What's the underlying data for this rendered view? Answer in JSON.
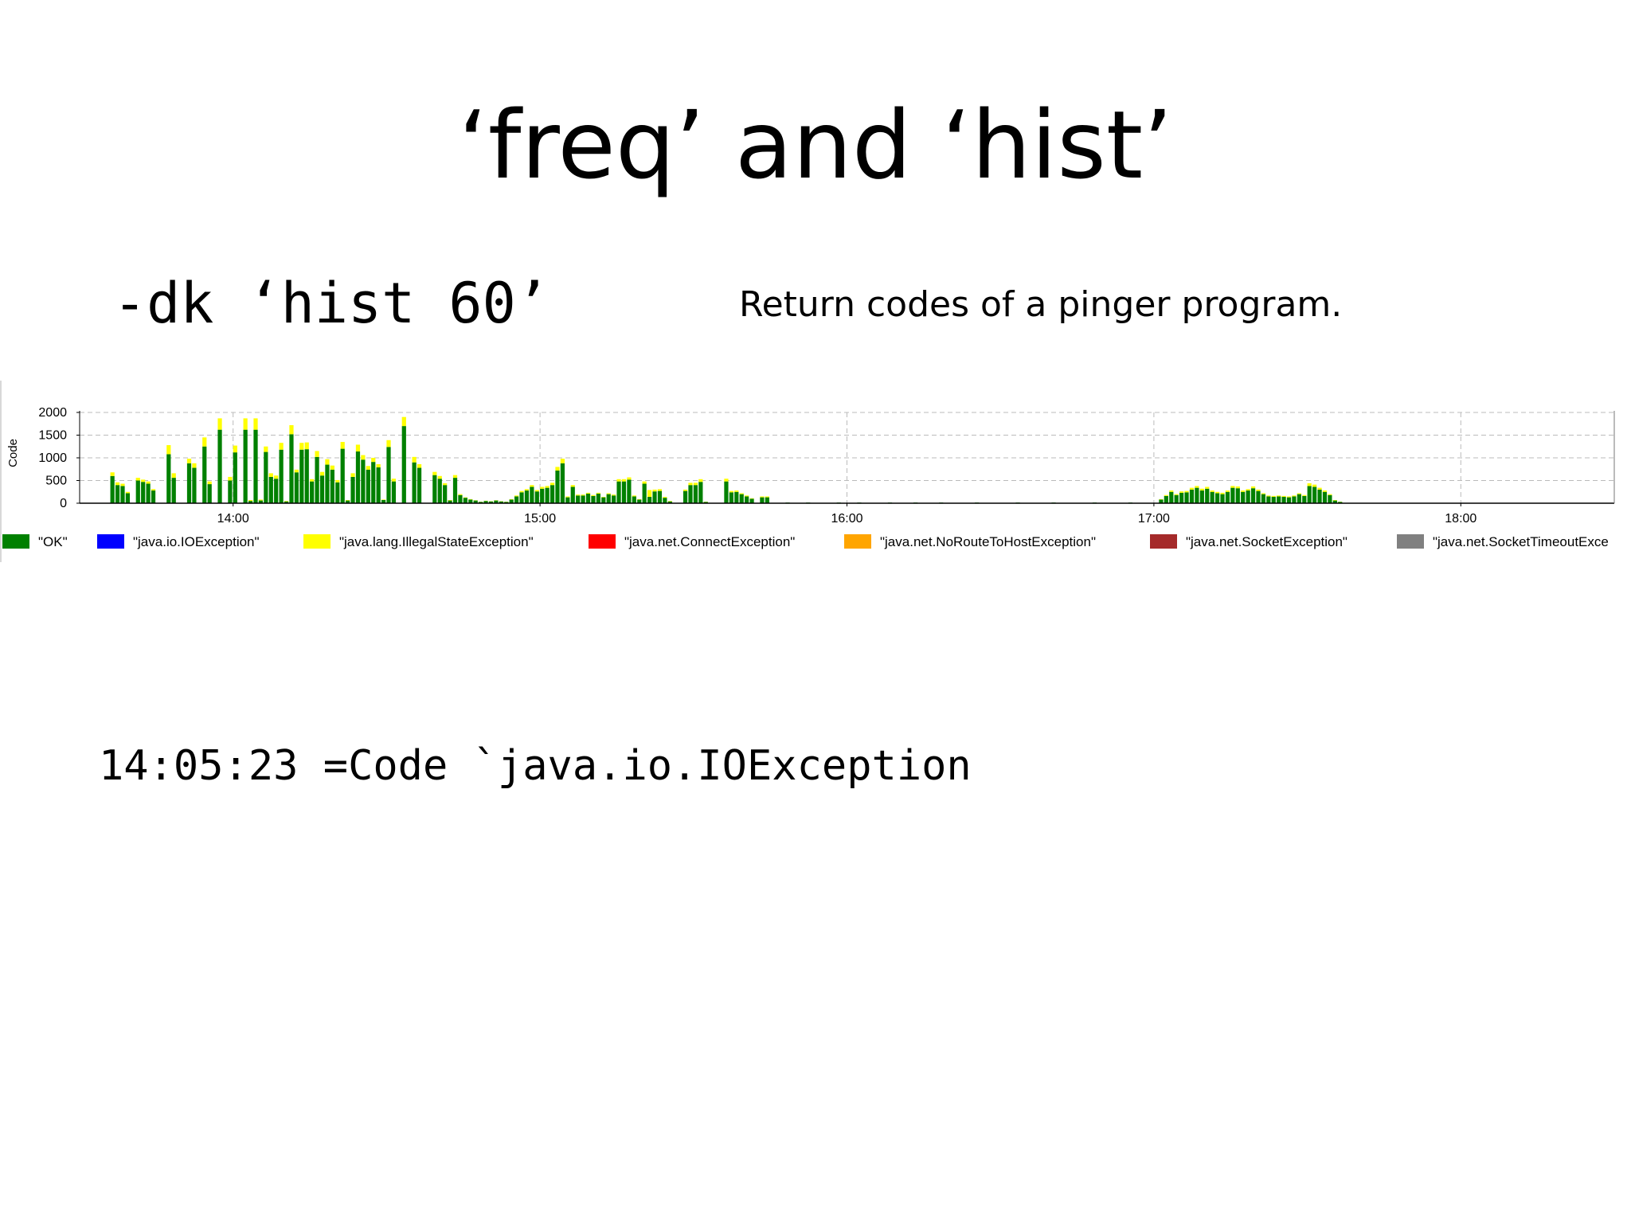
{
  "slide": {
    "title": "‘freq’ and ‘hist’",
    "command": "-dk ‘hist 60’",
    "caption": "Return codes of a pinger program.",
    "tooltip": "14:05:23 =Code `java.io.IOException"
  },
  "chart_data": {
    "type": "bar",
    "stacked": true,
    "ylabel": "Code",
    "ylim": [
      0,
      2000
    ],
    "yticks": [
      0,
      500,
      1000,
      1500,
      2000
    ],
    "xlim": [
      "13:30",
      "18:30"
    ],
    "xticks": [
      "14:00",
      "15:00",
      "16:00",
      "17:00",
      "18:00"
    ],
    "grid": true,
    "legend_position": "bottom",
    "bin_minutes": 1,
    "series": [
      {
        "name": "\"OK\"",
        "color": "#008000"
      },
      {
        "name": "\"java.io.IOException\"",
        "color": "#0000ff"
      },
      {
        "name": "\"java.lang.IllegalStateException\"",
        "color": "#ffff00"
      },
      {
        "name": "\"java.net.ConnectException\"",
        "color": "#ff0000"
      },
      {
        "name": "\"java.net.NoRouteToHostException\"",
        "color": "#ffa500"
      },
      {
        "name": "\"java.net.SocketException\"",
        "color": "#a52a2a"
      },
      {
        "name": "\"java.net.SocketTimeoutExce",
        "color": "#808080"
      }
    ],
    "bars": [
      {
        "t": "13:36",
        "ok": 600,
        "ise": 80
      },
      {
        "t": "13:37",
        "ok": 400,
        "ise": 60
      },
      {
        "t": "13:38",
        "ok": 380,
        "ise": 50
      },
      {
        "t": "13:39",
        "ok": 220,
        "ise": 30
      },
      {
        "t": "13:41",
        "ok": 500,
        "ise": 60
      },
      {
        "t": "13:42",
        "ok": 470,
        "ise": 50
      },
      {
        "t": "13:43",
        "ok": 430,
        "ise": 50
      },
      {
        "t": "13:44",
        "ok": 280,
        "ise": 30
      },
      {
        "t": "13:47",
        "ok": 1080,
        "ise": 200
      },
      {
        "t": "13:48",
        "ok": 560,
        "ise": 100
      },
      {
        "t": "13:51",
        "ok": 880,
        "ise": 100
      },
      {
        "t": "13:52",
        "ok": 780,
        "ise": 100
      },
      {
        "t": "13:54",
        "ok": 1250,
        "ise": 200
      },
      {
        "t": "13:55",
        "ok": 420,
        "ise": 60
      },
      {
        "t": "13:57",
        "ok": 1620,
        "ise": 250
      },
      {
        "t": "13:59",
        "ok": 500,
        "ise": 80
      },
      {
        "t": "14:00",
        "ok": 1120,
        "ise": 150
      },
      {
        "t": "14:02",
        "ok": 1620,
        "ise": 250
      },
      {
        "t": "14:03",
        "ok": 50,
        "ise": 20
      },
      {
        "t": "14:04",
        "ok": 1620,
        "ise": 250
      },
      {
        "t": "14:05",
        "ok": 60,
        "ise": 20
      },
      {
        "t": "14:06",
        "ok": 1130,
        "ise": 120
      },
      {
        "t": "14:07",
        "ok": 580,
        "ise": 80
      },
      {
        "t": "14:08",
        "ok": 540,
        "ise": 70
      },
      {
        "t": "14:09",
        "ok": 1180,
        "ise": 150
      },
      {
        "t": "14:10",
        "ok": 40,
        "ise": 10
      },
      {
        "t": "14:11",
        "ok": 1520,
        "ise": 200
      },
      {
        "t": "14:12",
        "ok": 680,
        "ise": 60
      },
      {
        "t": "14:13",
        "ok": 1180,
        "ise": 150
      },
      {
        "t": "14:14",
        "ok": 1190,
        "ise": 150
      },
      {
        "t": "14:15",
        "ok": 480,
        "ise": 50
      },
      {
        "t": "14:16",
        "ok": 1020,
        "ise": 130
      },
      {
        "t": "14:17",
        "ok": 610,
        "ise": 80
      },
      {
        "t": "14:18",
        "ok": 850,
        "ise": 120
      },
      {
        "t": "14:19",
        "ok": 740,
        "ise": 90
      },
      {
        "t": "14:20",
        "ok": 460,
        "ise": 50
      },
      {
        "t": "14:21",
        "ok": 1200,
        "ise": 150
      },
      {
        "t": "14:22",
        "ok": 60,
        "ise": 10
      },
      {
        "t": "14:23",
        "ok": 580,
        "ise": 80
      },
      {
        "t": "14:24",
        "ok": 1140,
        "ise": 150
      },
      {
        "t": "14:25",
        "ok": 960,
        "ise": 100
      },
      {
        "t": "14:26",
        "ok": 740,
        "ise": 80
      },
      {
        "t": "14:27",
        "ok": 910,
        "ise": 90
      },
      {
        "t": "14:28",
        "ok": 790,
        "ise": 70
      },
      {
        "t": "14:29",
        "ok": 70,
        "ise": 10
      },
      {
        "t": "14:30",
        "ok": 1240,
        "ise": 150
      },
      {
        "t": "14:31",
        "ok": 480,
        "ise": 60
      },
      {
        "t": "14:33",
        "ok": 1700,
        "ise": 200
      },
      {
        "t": "14:35",
        "ok": 900,
        "ise": 120
      },
      {
        "t": "14:36",
        "ok": 780,
        "ise": 80
      },
      {
        "t": "14:39",
        "ok": 620,
        "ise": 70
      },
      {
        "t": "14:40",
        "ok": 540,
        "ise": 60
      },
      {
        "t": "14:41",
        "ok": 400,
        "ise": 40
      },
      {
        "t": "14:42",
        "ok": 60,
        "ise": 10
      },
      {
        "t": "14:43",
        "ok": 560,
        "ise": 60
      },
      {
        "t": "14:44",
        "ok": 180,
        "ise": 20
      },
      {
        "t": "14:45",
        "ok": 120,
        "ise": 10
      },
      {
        "t": "14:46",
        "ok": 80,
        "ise": 10
      },
      {
        "t": "14:47",
        "ok": 60,
        "ise": 5
      },
      {
        "t": "14:48",
        "ok": 30,
        "ise": 5
      },
      {
        "t": "14:49",
        "ok": 50,
        "ise": 5
      },
      {
        "t": "14:50",
        "ok": 40,
        "ise": 5
      },
      {
        "t": "14:51",
        "ok": 60,
        "ise": 5
      },
      {
        "t": "14:52",
        "ok": 40,
        "ise": 5
      },
      {
        "t": "14:53",
        "ok": 30,
        "ise": 5
      },
      {
        "t": "14:54",
        "ok": 80,
        "ise": 10
      },
      {
        "t": "14:55",
        "ok": 150,
        "ise": 20
      },
      {
        "t": "14:56",
        "ok": 240,
        "ise": 30
      },
      {
        "t": "14:57",
        "ok": 280,
        "ise": 30
      },
      {
        "t": "14:58",
        "ok": 360,
        "ise": 40
      },
      {
        "t": "14:59",
        "ok": 260,
        "ise": 30
      },
      {
        "t": "15:00",
        "ok": 320,
        "ise": 40
      },
      {
        "t": "15:01",
        "ok": 340,
        "ise": 40
      },
      {
        "t": "15:02",
        "ok": 400,
        "ise": 50
      },
      {
        "t": "15:03",
        "ok": 720,
        "ise": 80
      },
      {
        "t": "15:04",
        "ok": 880,
        "ise": 100
      },
      {
        "t": "15:05",
        "ok": 130,
        "ise": 20
      },
      {
        "t": "15:06",
        "ok": 360,
        "ise": 40
      },
      {
        "t": "15:07",
        "ok": 170,
        "ise": 20
      },
      {
        "t": "15:08",
        "ok": 170,
        "ise": 20
      },
      {
        "t": "15:09",
        "ok": 210,
        "ise": 20
      },
      {
        "t": "15:10",
        "ok": 160,
        "ise": 20
      },
      {
        "t": "15:11",
        "ok": 210,
        "ise": 20
      },
      {
        "t": "15:12",
        "ok": 130,
        "ise": 10
      },
      {
        "t": "15:13",
        "ok": 200,
        "ise": 20
      },
      {
        "t": "15:14",
        "ok": 170,
        "ise": 20
      },
      {
        "t": "15:15",
        "ok": 480,
        "ise": 50
      },
      {
        "t": "15:16",
        "ok": 480,
        "ise": 50
      },
      {
        "t": "15:17",
        "ok": 520,
        "ise": 50
      },
      {
        "t": "15:18",
        "ok": 150,
        "ise": 20
      },
      {
        "t": "15:19",
        "ok": 80,
        "ise": 10
      },
      {
        "t": "15:20",
        "ok": 430,
        "ise": 50
      },
      {
        "t": "15:21",
        "ok": 140,
        "ise": 150
      },
      {
        "t": "15:22",
        "ok": 260,
        "ise": 40
      },
      {
        "t": "15:23",
        "ok": 270,
        "ise": 40
      },
      {
        "t": "15:24",
        "ok": 120,
        "ise": 20
      },
      {
        "t": "15:25",
        "ok": 40,
        "ise": 10
      },
      {
        "t": "15:28",
        "ok": 270,
        "ise": 30
      },
      {
        "t": "15:29",
        "ok": 400,
        "ise": 50
      },
      {
        "t": "15:30",
        "ok": 400,
        "ise": 50
      },
      {
        "t": "15:31",
        "ok": 470,
        "ise": 60
      },
      {
        "t": "15:32",
        "ok": 30,
        "ise": 5
      },
      {
        "t": "15:36",
        "ok": 480,
        "ise": 60
      },
      {
        "t": "15:37",
        "ok": 240,
        "ise": 30
      },
      {
        "t": "15:38",
        "ok": 250,
        "ise": 30
      },
      {
        "t": "15:39",
        "ok": 200,
        "ise": 20
      },
      {
        "t": "15:40",
        "ok": 150,
        "ise": 20
      },
      {
        "t": "15:41",
        "ok": 100,
        "ise": 10
      },
      {
        "t": "15:43",
        "ok": 130,
        "ise": 20
      },
      {
        "t": "15:44",
        "ok": 130,
        "ise": 20
      },
      {
        "t": "15:48",
        "ok": 15,
        "ise": 0
      },
      {
        "t": "15:52",
        "ok": 15,
        "ise": 0
      },
      {
        "t": "15:58",
        "ok": 15,
        "ise": 0
      },
      {
        "t": "16:02",
        "ok": 15,
        "ise": 0
      },
      {
        "t": "16:08",
        "ok": 15,
        "ise": 0
      },
      {
        "t": "16:13",
        "ok": 15,
        "ise": 0
      },
      {
        "t": "16:18",
        "ok": 15,
        "ise": 0
      },
      {
        "t": "16:25",
        "ok": 15,
        "ise": 0
      },
      {
        "t": "16:33",
        "ok": 15,
        "ise": 0
      },
      {
        "t": "16:40",
        "ok": 15,
        "ise": 0
      },
      {
        "t": "16:48",
        "ok": 15,
        "ise": 0
      },
      {
        "t": "16:55",
        "ok": 15,
        "ise": 0
      },
      {
        "t": "17:01",
        "ok": 80,
        "ise": 10
      },
      {
        "t": "17:02",
        "ok": 160,
        "ise": 20
      },
      {
        "t": "17:03",
        "ok": 250,
        "ise": 30
      },
      {
        "t": "17:04",
        "ok": 180,
        "ise": 20
      },
      {
        "t": "17:05",
        "ok": 230,
        "ise": 30
      },
      {
        "t": "17:06",
        "ok": 240,
        "ise": 30
      },
      {
        "t": "17:07",
        "ok": 300,
        "ise": 40
      },
      {
        "t": "17:08",
        "ok": 340,
        "ise": 40
      },
      {
        "t": "17:09",
        "ok": 280,
        "ise": 40
      },
      {
        "t": "17:10",
        "ok": 320,
        "ise": 40
      },
      {
        "t": "17:11",
        "ok": 250,
        "ise": 30
      },
      {
        "t": "17:12",
        "ok": 220,
        "ise": 30
      },
      {
        "t": "17:13",
        "ok": 200,
        "ise": 30
      },
      {
        "t": "17:14",
        "ok": 250,
        "ise": 30
      },
      {
        "t": "17:15",
        "ok": 340,
        "ise": 40
      },
      {
        "t": "17:16",
        "ok": 330,
        "ise": 40
      },
      {
        "t": "17:17",
        "ok": 250,
        "ise": 30
      },
      {
        "t": "17:18",
        "ok": 280,
        "ise": 30
      },
      {
        "t": "17:19",
        "ok": 330,
        "ise": 40
      },
      {
        "t": "17:20",
        "ok": 270,
        "ise": 30
      },
      {
        "t": "17:21",
        "ok": 200,
        "ise": 20
      },
      {
        "t": "17:22",
        "ok": 150,
        "ise": 20
      },
      {
        "t": "17:23",
        "ok": 140,
        "ise": 20
      },
      {
        "t": "17:24",
        "ok": 150,
        "ise": 20
      },
      {
        "t": "17:25",
        "ok": 140,
        "ise": 20
      },
      {
        "t": "17:26",
        "ok": 130,
        "ise": 20
      },
      {
        "t": "17:27",
        "ok": 150,
        "ise": 20
      },
      {
        "t": "17:28",
        "ok": 200,
        "ise": 20
      },
      {
        "t": "17:29",
        "ok": 160,
        "ise": 20
      },
      {
        "t": "17:30",
        "ok": 380,
        "ise": 60
      },
      {
        "t": "17:31",
        "ok": 360,
        "ise": 50
      },
      {
        "t": "17:32",
        "ok": 300,
        "ise": 40
      },
      {
        "t": "17:33",
        "ok": 250,
        "ise": 30
      },
      {
        "t": "17:34",
        "ok": 180,
        "ise": 20
      },
      {
        "t": "17:35",
        "ok": 60,
        "ise": 10
      },
      {
        "t": "17:36",
        "ok": 30,
        "ise": 5
      }
    ]
  }
}
